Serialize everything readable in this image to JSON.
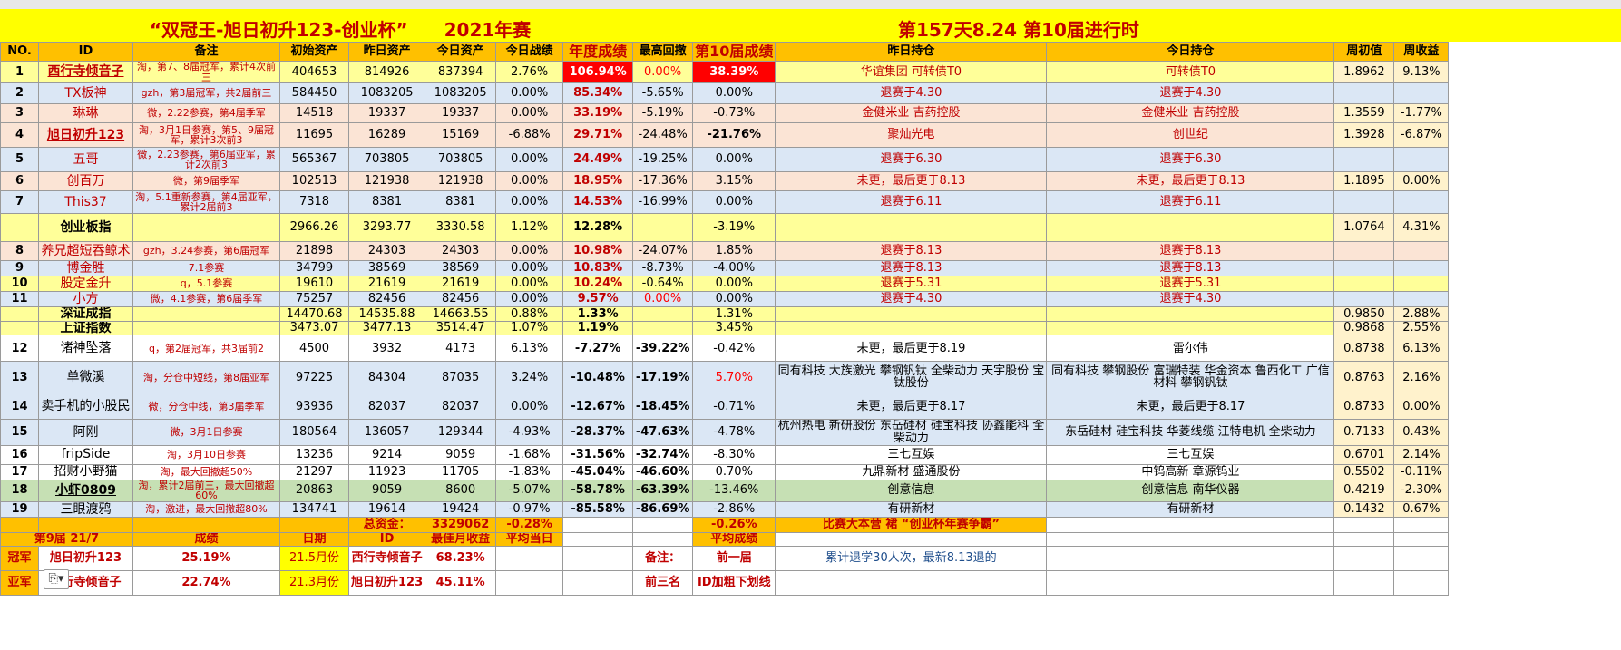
{
  "title": {
    "left": "“双冠王-旭日初升123-创业杯”　　2021年赛",
    "right": "第157天8.24 第10届进行时"
  },
  "headers": [
    "NO.",
    "ID",
    "备注",
    "初始资产",
    "昨日资产",
    "今日资产",
    "今日战绩",
    "年度成绩",
    "最高回撤",
    "第10届成绩",
    "昨日持仓",
    "今日持仓",
    "周初值",
    "周收益"
  ],
  "rows": [
    {
      "no": "1",
      "id": "西行寺倾音子",
      "note": "淘，第7、8届冠军，累计4次前三",
      "init": "404653",
      "yest": "814926",
      "today": "837394",
      "day": "2.76%",
      "year": "106.94%",
      "dd": "0.00%",
      "cur": "38.39%",
      "hy": "华谊集团 可转债T0",
      "ht": "可转债T0",
      "wk": "1.8962",
      "wr": "9.13%"
    },
    {
      "no": "2",
      "id": "TX板神",
      "note": "gzh，第3届冠军，共2届前三",
      "init": "584450",
      "yest": "1083205",
      "today": "1083205",
      "day": "0.00%",
      "year": "85.34%",
      "dd": "-5.65%",
      "cur": "0.00%",
      "hy": "退赛于4.30",
      "ht": "退赛于4.30",
      "wk": "",
      "wr": ""
    },
    {
      "no": "3",
      "id": "琳琳",
      "note": "微，2.22参赛，第4届季军",
      "init": "14518",
      "yest": "19337",
      "today": "19337",
      "day": "0.00%",
      "year": "33.19%",
      "dd": "-5.19%",
      "cur": "-0.73%",
      "hy": "金健米业 吉药控股",
      "ht": "金健米业 吉药控股",
      "wk": "1.3559",
      "wr": "-1.77%"
    },
    {
      "no": "4",
      "id": "旭日初升123",
      "note": "淘，3月1日参赛，第5、9届冠军，累计3次前3",
      "init": "11695",
      "yest": "16289",
      "today": "15169",
      "day": "-6.88%",
      "year": "29.71%",
      "dd": "-24.48%",
      "cur": "-21.76%",
      "hy": "聚灿光电",
      "ht": "创世纪",
      "wk": "1.3928",
      "wr": "-6.87%"
    },
    {
      "no": "5",
      "id": "五哥",
      "note": "微，2.23参赛，第6届亚军，累计2次前3",
      "init": "565367",
      "yest": "703805",
      "today": "703805",
      "day": "0.00%",
      "year": "24.49%",
      "dd": "-19.25%",
      "cur": "0.00%",
      "hy": "退赛于6.30",
      "ht": "退赛于6.30",
      "wk": "",
      "wr": ""
    },
    {
      "no": "6",
      "id": "创百万",
      "note": "微，第9届季军",
      "init": "102513",
      "yest": "121938",
      "today": "121938",
      "day": "0.00%",
      "year": "18.95%",
      "dd": "-17.36%",
      "cur": "3.15%",
      "hy": "未更，最后更于8.13",
      "ht": "未更，最后更于8.13",
      "wk": "1.1895",
      "wr": "0.00%"
    },
    {
      "no": "7",
      "id": "This37",
      "note": "淘，5.1重新参赛，第4届亚军，累计2届前3",
      "init": "7318",
      "yest": "8381",
      "today": "8381",
      "day": "0.00%",
      "year": "14.53%",
      "dd": "-16.99%",
      "cur": "0.00%",
      "hy": "退赛于6.11",
      "ht": "退赛于6.11",
      "wk": "",
      "wr": ""
    },
    {
      "no": "",
      "id": "创业板指",
      "note": "",
      "init": "2966.26",
      "yest": "3293.77",
      "today": "3330.58",
      "day": "1.12%",
      "year": "12.28%",
      "dd": "",
      "cur": "-3.19%",
      "hy": "",
      "ht": "",
      "wk": "1.0764",
      "wr": "4.31%"
    },
    {
      "no": "8",
      "id": "养兄超短吞鲸术",
      "note": "gzh，3.24参赛，第6届冠军",
      "init": "21898",
      "yest": "24303",
      "today": "24303",
      "day": "0.00%",
      "year": "10.98%",
      "dd": "-24.07%",
      "cur": "1.85%",
      "hy": "退赛于8.13",
      "ht": "退赛于8.13",
      "wk": "",
      "wr": ""
    },
    {
      "no": "9",
      "id": "博金胜",
      "note": "7.1参赛",
      "init": "34799",
      "yest": "38569",
      "today": "38569",
      "day": "0.00%",
      "year": "10.83%",
      "dd": "-8.73%",
      "cur": "-4.00%",
      "hy": "退赛于8.13",
      "ht": "退赛于8.13",
      "wk": "",
      "wr": ""
    },
    {
      "no": "10",
      "id": "股定金升",
      "note": "q，5.1参赛",
      "init": "19610",
      "yest": "21619",
      "today": "21619",
      "day": "0.00%",
      "year": "10.24%",
      "dd": "-0.64%",
      "cur": "0.00%",
      "hy": "退赛于5.31",
      "ht": "退赛于5.31",
      "wk": "",
      "wr": ""
    },
    {
      "no": "11",
      "id": "小方",
      "note": "微，4.1参赛，第6届季军",
      "init": "75257",
      "yest": "82456",
      "today": "82456",
      "day": "0.00%",
      "year": "9.57%",
      "dd": "0.00%",
      "cur": "0.00%",
      "hy": "退赛于4.30",
      "ht": "退赛于4.30",
      "wk": "",
      "wr": ""
    },
    {
      "no": "",
      "id": "深证成指",
      "note": "",
      "init": "14470.68",
      "yest": "14535.88",
      "today": "14663.55",
      "day": "0.88%",
      "year": "1.33%",
      "dd": "",
      "cur": "1.31%",
      "hy": "",
      "ht": "",
      "wk": "0.9850",
      "wr": "2.88%"
    },
    {
      "no": "",
      "id": "上证指数",
      "note": "",
      "init": "3473.07",
      "yest": "3477.13",
      "today": "3514.47",
      "day": "1.07%",
      "year": "1.19%",
      "dd": "",
      "cur": "3.45%",
      "hy": "",
      "ht": "",
      "wk": "0.9868",
      "wr": "2.55%"
    },
    {
      "no": "12",
      "id": "诸神坠落",
      "note": "q，第2届冠军，共3届前2",
      "init": "4500",
      "yest": "3932",
      "today": "4173",
      "day": "6.13%",
      "year": "-7.27%",
      "dd": "-39.22%",
      "cur": "-0.42%",
      "hy": "未更，最后更于8.19",
      "ht": "雷尔伟",
      "wk": "0.8738",
      "wr": "6.13%"
    },
    {
      "no": "13",
      "id": "单微溪",
      "note": "淘，分仓中短线，第8届亚军",
      "init": "97225",
      "yest": "84304",
      "today": "87035",
      "day": "3.24%",
      "year": "-10.48%",
      "dd": "-17.19%",
      "cur": "5.70%",
      "hy": "同有科技 大族激光 攀钢钒钛 全柴动力 天宇股份 宝钛股份",
      "ht": "同有科技 攀钢股份 富瑞特装 华金资本 鲁西化工 广信材料 攀钢钒钛",
      "wk": "0.8763",
      "wr": "2.16%"
    },
    {
      "no": "14",
      "id": "卖手机的小股民",
      "note": "微，分仓中线，第3届季军",
      "init": "93936",
      "yest": "82037",
      "today": "82037",
      "day": "0.00%",
      "year": "-12.67%",
      "dd": "-18.45%",
      "cur": "-0.71%",
      "hy": "未更，最后更于8.17",
      "ht": "未更，最后更于8.17",
      "wk": "0.8733",
      "wr": "0.00%"
    },
    {
      "no": "15",
      "id": "阿刚",
      "note": "微，3月1日参赛",
      "init": "180564",
      "yest": "136057",
      "today": "129344",
      "day": "-4.93%",
      "year": "-28.37%",
      "dd": "-47.63%",
      "cur": "-4.78%",
      "hy": "杭州热电 新研股份 东岳硅材 硅宝科技 协鑫能科 全柴动力",
      "ht": "东岳硅材 硅宝科技 华菱线缆 江特电机 全柴动力",
      "wk": "0.7133",
      "wr": "0.43%"
    },
    {
      "no": "16",
      "id": "fripSide",
      "note": "淘，3月10日参赛",
      "init": "13236",
      "yest": "9214",
      "today": "9059",
      "day": "-1.68%",
      "year": "-31.56%",
      "dd": "-32.74%",
      "cur": "-8.30%",
      "hy": "三七互娱",
      "ht": "三七互娱",
      "wk": "0.6701",
      "wr": "2.14%"
    },
    {
      "no": "17",
      "id": "招财小野猫",
      "note": "淘，最大回撤超50%",
      "init": "21297",
      "yest": "11923",
      "today": "11705",
      "day": "-1.83%",
      "year": "-45.04%",
      "dd": "-46.60%",
      "cur": "0.70%",
      "hy": "九鼎新材 盛通股份",
      "ht": "中钨高新 章源钨业",
      "wk": "0.5502",
      "wr": "-0.11%"
    },
    {
      "no": "18",
      "id": "小虾0809",
      "note": "淘，累计2届前三，最大回撤超60%",
      "init": "20863",
      "yest": "9059",
      "today": "8600",
      "day": "-5.07%",
      "year": "-58.78%",
      "dd": "-63.39%",
      "cur": "-13.46%",
      "hy": "创意信息",
      "ht": "创意信息 南华仪器",
      "wk": "0.4219",
      "wr": "-2.30%"
    },
    {
      "no": "19",
      "id": "三眼渡鸦",
      "note": "淘，激进，最大回撤超80%",
      "init": "134741",
      "yest": "19614",
      "today": "19424",
      "day": "-0.97%",
      "year": "-85.58%",
      "dd": "-86.69%",
      "cur": "-2.86%",
      "hy": "有研新材",
      "ht": "有研新材",
      "wk": "0.1432",
      "wr": "0.67%"
    }
  ],
  "total": {
    "label": "总资金：",
    "value": "3329062",
    "pct": "-0.28%",
    "cur": "-0.26%",
    "slogan": "比赛大本营 裙 “创业杯年赛争霸”"
  },
  "summary_header": {
    "season": "第9届 21/7",
    "score": "成绩",
    "date": "日期",
    "id": "ID",
    "best": "最佳月收益",
    "avg_today": "平均当日",
    "avg_score": "平均成绩"
  },
  "champion": {
    "label": "冠军",
    "id": "旭日初升123",
    "score": "25.19%",
    "date": "21.5月份",
    "best_id": "西行寺倾音子",
    "best": "68.23%",
    "note_label": "备注：",
    "note_val": "前一届",
    "note_text": "累计退学30人次，最新8.13退的"
  },
  "runner": {
    "label": "亚军",
    "id": "西行寺倾音子",
    "score": "22.74%",
    "date": "21.3月份",
    "best_id": "旭日初升123",
    "best": "45.11%",
    "note2": "前三名",
    "note3": "ID加粗下划线"
  },
  "icons": {
    "paste": "paste-options-icon"
  }
}
